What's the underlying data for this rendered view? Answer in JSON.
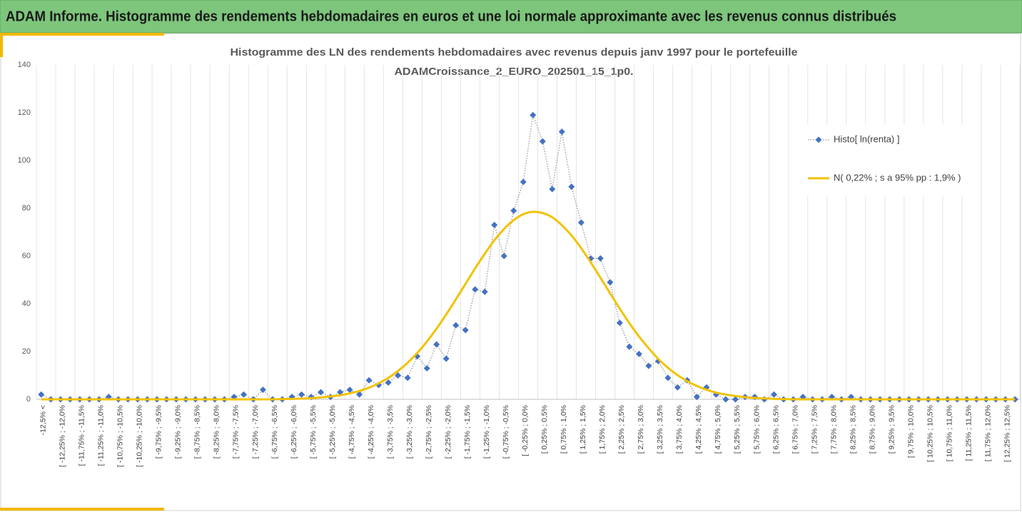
{
  "header": {
    "title": "ADAM Informe. Histogramme des rendements hebdomadaires en euros et une loi normale approximante avec les revenus connus distribués"
  },
  "chart_data": {
    "type": "line",
    "title": [
      "Histogramme des LN des rendements hebdomadaires avec revenus depuis janv 1997 pour le portefeuille",
      "ADAMCroissance_2_EURO_202501_15_1p0."
    ],
    "categories": [
      "-12,5% <",
      null,
      "[ -12,25% ; -12,0%",
      null,
      "[ -11,75% ; -11,5%",
      null,
      "[ -11,25% ; -11,0%",
      null,
      "[ -10,75% ; -10,5%",
      null,
      "[ -10,25% ; -10,0%",
      null,
      "[ -9,75% ; -9,5%",
      null,
      "[ -9,25% ; -9,0%",
      null,
      "[ -8,75% ; -8,5%",
      null,
      "[ -8,25% ; -8,0%",
      null,
      "[ -7,75% ; -7,5%",
      null,
      "[ -7,25% ; -7,0%",
      null,
      "[ -6,75% ; -6,5%",
      null,
      "[ -6,25% ; -6,0%",
      null,
      "[ -5,75% ; -5,5%",
      null,
      "[ -5,25% ; -5,0%",
      null,
      "[ -4,75% ; -4,5%",
      null,
      "[ -4,25% ; -4,0%",
      null,
      "[ -3,75% ; -3,5%",
      null,
      "[ -3,25% ; -3,0%",
      null,
      "[ -2,75% ; -2,5%",
      null,
      "[ -2,25% ; -2,0%",
      null,
      "[ -1,75% ; -1,5%",
      null,
      "[ -1,25% ; -1,0%",
      null,
      "[ -0,75% ; -0,5%",
      null,
      "[ -0,25% ; 0,0%",
      null,
      "[ 0,25% ; 0,5%",
      null,
      "[ 0,75% ; 1,0%",
      null,
      "[ 1,25% ; 1,5%",
      null,
      "[ 1,75% ; 2,0%",
      null,
      "[ 2,25% ; 2,5%",
      null,
      "[ 2,75% ; 3,0%",
      null,
      "[ 3,25% ; 3,5%",
      null,
      "[ 3,75% ; 4,0%",
      null,
      "[ 4,25% ; 4,5%",
      null,
      "[ 4,75% ; 5,0%",
      null,
      "[ 5,25% ; 5,5%",
      null,
      "[ 5,75% ; 6,0%",
      null,
      "[ 6,25% ; 6,5%",
      null,
      "[ 6,75% ; 7,0%",
      null,
      "[ 7,25% ; 7,5%",
      null,
      "[ 7,75% ; 8,0%",
      null,
      "[ 8,25% ; 8,5%",
      null,
      "[ 8,75% ; 9,0%",
      null,
      "[ 9,25% ; 9,5%",
      null,
      "[ 9,75% ; 10,0%",
      null,
      "[ 10,25% ; 10,5%",
      null,
      "[ 10,75% ; 11,0%",
      null,
      "[ 11,25% ; 11,5%",
      null,
      "[ 11,75% ; 12,0%",
      null,
      "[ 12,25% ; 12,5%",
      null
    ],
    "series": [
      {
        "name": "Histo[ ln(renta) ]",
        "color": "#4472c4",
        "line_color": "#a5a5a5",
        "values": [
          2,
          0,
          0,
          0,
          0,
          0,
          0,
          1,
          0,
          0,
          0,
          0,
          0,
          0,
          0,
          0,
          0,
          0,
          0,
          0,
          1,
          2,
          0,
          4,
          0,
          0,
          1,
          2,
          1,
          3,
          1,
          3,
          4,
          2,
          8,
          6,
          7,
          10,
          9,
          18,
          13,
          23,
          17,
          31,
          29,
          46,
          45,
          73,
          60,
          79,
          91,
          119,
          108,
          88,
          112,
          89,
          74,
          59,
          59,
          49,
          32,
          22,
          19,
          14,
          16,
          9,
          5,
          8,
          1,
          5,
          2,
          0,
          0,
          1,
          1,
          0,
          2,
          0,
          0,
          1,
          0,
          0,
          1,
          0,
          1,
          0,
          0,
          0,
          0,
          0,
          0,
          0,
          0,
          0,
          0,
          0,
          0,
          0,
          0,
          0,
          0,
          0
        ]
      },
      {
        "name": "N( 0,22% ; s a 95% pp : 1,9% )",
        "color": "#f2c200",
        "values": [
          0,
          0,
          0,
          0,
          0,
          0,
          0,
          0,
          0,
          0,
          0,
          0,
          0,
          0,
          0,
          0,
          0,
          0,
          0,
          0,
          0,
          0,
          0,
          0,
          0,
          0.1,
          0.2,
          0.3,
          0.5,
          0.8,
          1.2,
          1.7,
          2.5,
          3.5,
          4.9,
          6.7,
          9.0,
          11.9,
          15.3,
          19.4,
          24.2,
          29.6,
          35.5,
          41.8,
          48.3,
          54.8,
          60.9,
          66.6,
          71.3,
          75.0,
          77.5,
          78.5,
          78.0,
          76.2,
          72.9,
          68.6,
          63.3,
          57.3,
          50.9,
          44.4,
          38.0,
          31.9,
          26.3,
          21.4,
          16.9,
          13.2,
          10.1,
          7.6,
          5.6,
          4.0,
          2.8,
          2.0,
          1.4,
          0.9,
          0.6,
          0.4,
          0.2,
          0.1,
          0,
          0,
          0,
          0,
          0,
          0,
          0,
          0,
          0,
          0,
          0,
          0,
          0,
          0,
          0,
          0,
          0,
          0,
          0,
          0,
          0,
          0,
          0,
          0
        ]
      }
    ],
    "ylim": [
      0,
      140
    ],
    "yticks": [
      0,
      20,
      40,
      60,
      80,
      100,
      120,
      140
    ],
    "grid": false,
    "xgrid": true,
    "legend": "right"
  }
}
